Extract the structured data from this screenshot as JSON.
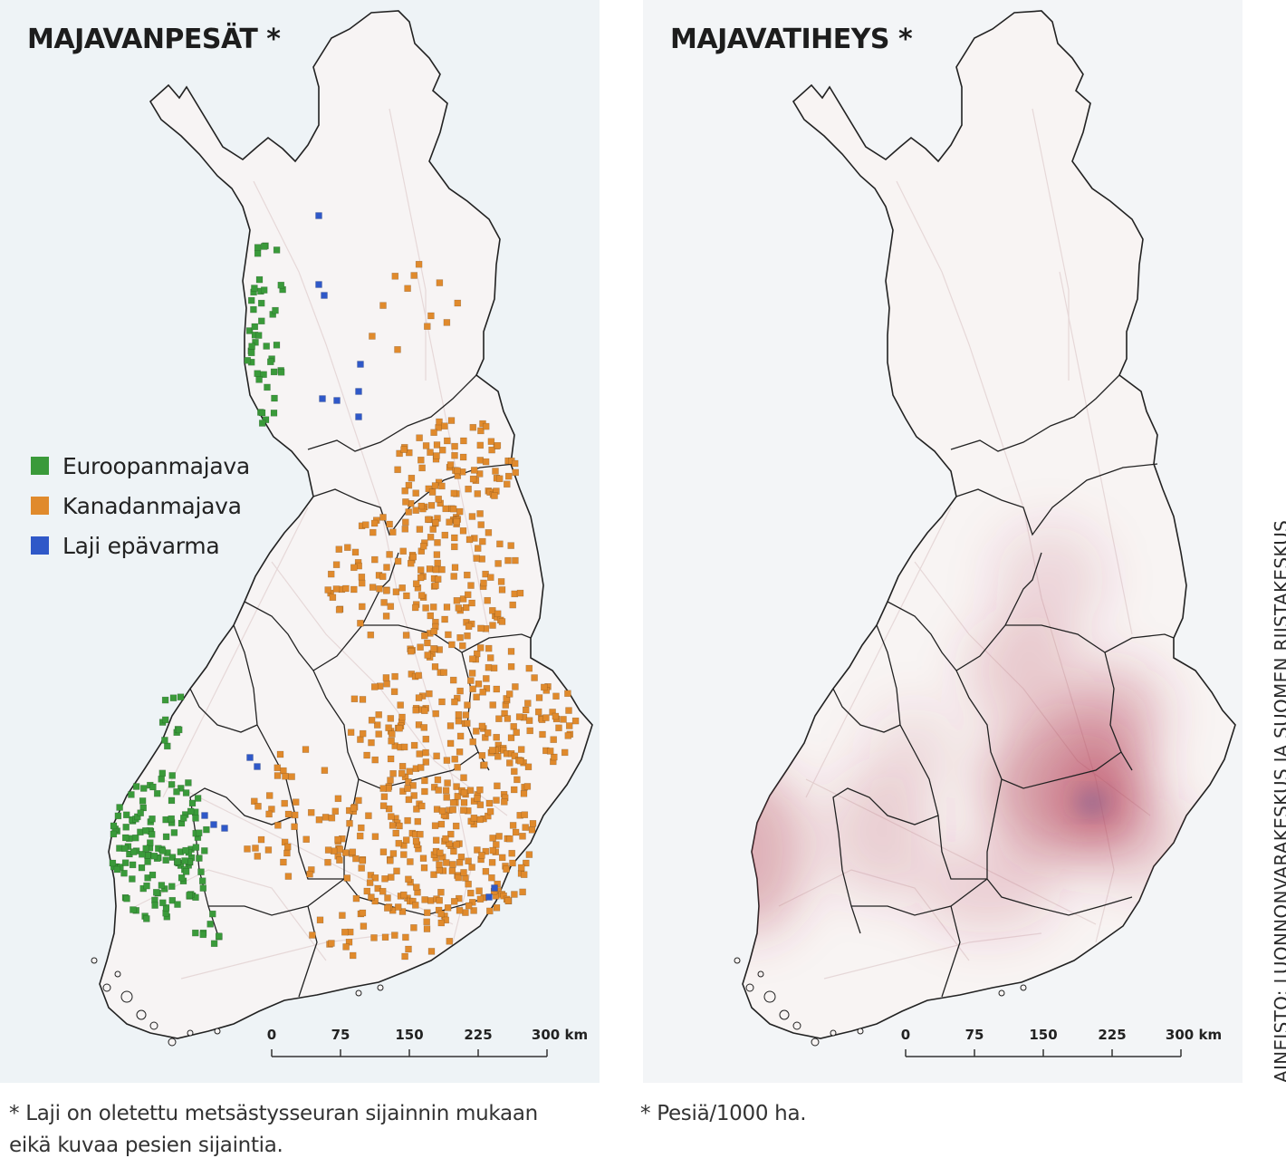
{
  "left_map": {
    "title": "MAJAVANPESÄT *",
    "legend": [
      {
        "label": "Euroopanmajava",
        "color": "#3a9a3a"
      },
      {
        "label": "Kanadanmajava",
        "color": "#e08a2c"
      },
      {
        "label": "Laji epävarma",
        "color": "#2f58c8"
      }
    ],
    "scale_ticks": [
      "0",
      "75",
      "150",
      "225",
      "300 km"
    ]
  },
  "right_map": {
    "title": "MAJAVATIHEYS *",
    "scale_ticks": [
      "0",
      "75",
      "150",
      "225",
      "300 km"
    ]
  },
  "footnotes": {
    "left_line1": "* Laji on oletettu metsästysseuran sijainnin mukaan",
    "left_line2": "eikä kuvaa pesien sijaintia.",
    "right": "* Pesiä/1000 ha."
  },
  "source_credit": "AINEISTO: LUONNONVARAKESKUS JA SUOMEN RIISTAKESKUS",
  "colors": {
    "euroopanmajava": "#3a9a3a",
    "kanadanmajava": "#e08a2c",
    "laji_epavarma": "#2f58c8",
    "density_high": "#b0304a",
    "density_peak": "#7a6aa0"
  }
}
